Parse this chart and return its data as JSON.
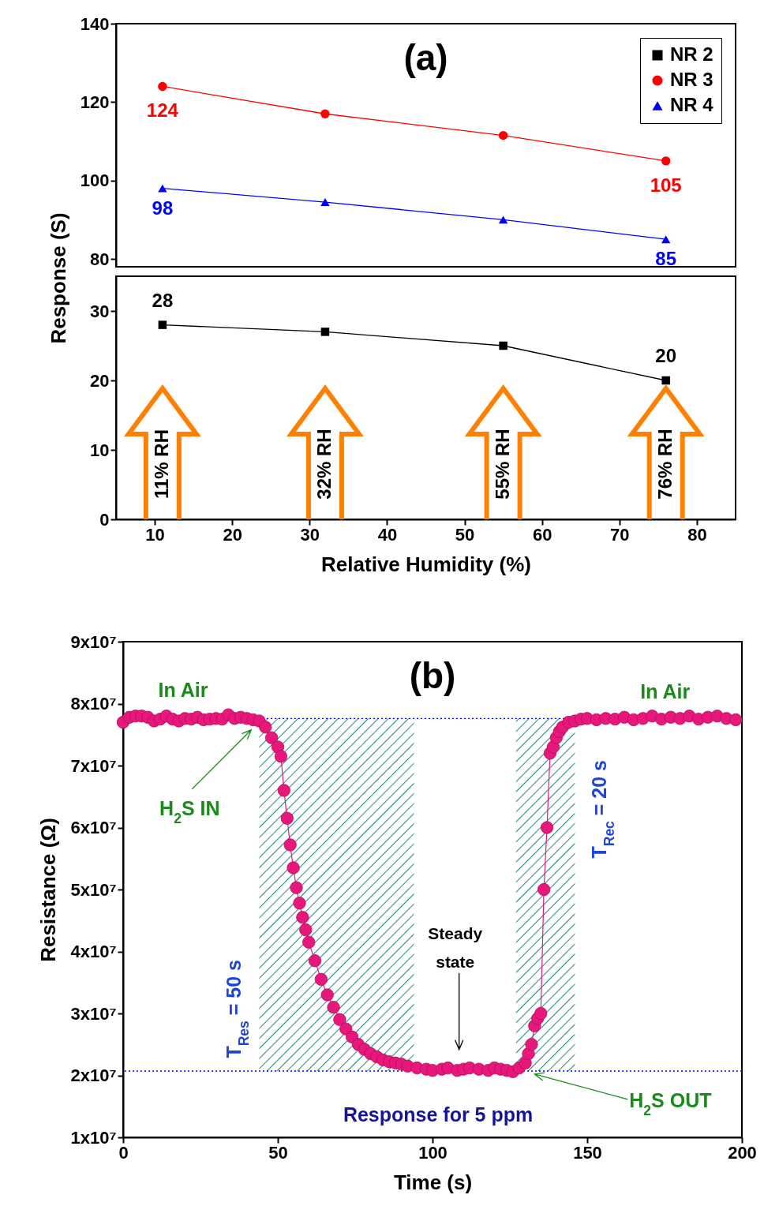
{
  "chart_data": [
    {
      "type": "line",
      "title": "(a)",
      "ylabel": "Response (S)",
      "x": [
        11,
        32,
        55,
        76
      ],
      "xlim": [
        5,
        85
      ],
      "ylim": [
        78,
        140
      ],
      "yticks": [
        80,
        100,
        120,
        140
      ],
      "tick_labels": "y",
      "legend": "top right",
      "series": [
        {
          "name": "NR 2",
          "color": "#000000",
          "marker": "square",
          "values": [
            null,
            null,
            null,
            null
          ]
        },
        {
          "name": "NR 3",
          "color": "#ff0000",
          "marker": "circle",
          "values": [
            124,
            117,
            111.5,
            105
          ],
          "value_labels": [
            "124",
            null,
            null,
            "105"
          ]
        },
        {
          "name": "NR 4",
          "color": "#0000ff",
          "marker": "triangle",
          "values": [
            98,
            94.5,
            90,
            85
          ],
          "value_labels": [
            "98",
            null,
            null,
            "85"
          ]
        }
      ]
    },
    {
      "type": "line",
      "xlabel": "Relative Humidity (%)",
      "x": [
        11,
        32,
        55,
        76
      ],
      "xlim": [
        5,
        85
      ],
      "xticks": [
        10,
        20,
        30,
        40,
        50,
        60,
        70,
        80
      ],
      "ylim": [
        0,
        35
      ],
      "yticks": [
        0,
        10,
        20,
        30
      ],
      "marker": "square",
      "series": [
        {
          "color": "#000000",
          "values": [
            28,
            27,
            25,
            20
          ],
          "value_labels": [
            "28",
            null,
            null,
            "20"
          ]
        }
      ],
      "annotations": [
        "11% RH",
        "32% RH",
        "55% RH",
        "76% RH"
      ]
    },
    {
      "type": "line",
      "title": "(b)",
      "xlabel": "Time (s)",
      "ylabel": "Resistance (Ω)",
      "xlim": [
        0,
        200
      ],
      "xticks": [
        0,
        50,
        100,
        150,
        200
      ],
      "ylim": [
        10000000.0,
        90000000.0
      ],
      "yticks": [
        {
          "value": 10000000.0,
          "label": "1x10⁷"
        },
        {
          "value": 20000000.0,
          "label": "2x10⁷"
        },
        {
          "value": 30000000.0,
          "label": "3x10⁷"
        },
        {
          "value": 40000000.0,
          "label": "4x10⁷"
        },
        {
          "value": 50000000.0,
          "label": "5x10⁷"
        },
        {
          "value": 60000000.0,
          "label": "6x10⁷"
        },
        {
          "value": 70000000.0,
          "label": "7x10⁷"
        },
        {
          "value": 80000000.0,
          "label": "8x10⁷"
        },
        {
          "value": 90000000.0,
          "label": "9x10⁷"
        }
      ],
      "marker": "circle",
      "x": [
        0,
        2,
        4,
        6,
        8,
        10,
        12,
        14,
        16,
        18,
        20,
        22,
        24,
        26,
        28,
        30,
        32,
        34,
        36,
        38,
        40,
        42,
        44,
        46,
        48,
        50,
        51,
        52,
        53,
        54,
        55,
        56,
        57,
        58,
        59,
        60,
        62,
        64,
        66,
        68,
        70,
        72,
        74,
        76,
        78,
        80,
        82,
        84,
        86,
        88,
        90,
        92,
        95,
        98,
        100,
        103,
        105,
        108,
        110,
        112,
        115,
        118,
        120,
        122,
        124,
        126,
        128,
        130,
        131,
        132,
        133,
        134,
        135,
        136,
        137,
        138,
        139,
        140,
        141,
        142,
        144,
        146,
        148,
        150,
        153,
        156,
        159,
        162,
        165,
        168,
        171,
        174,
        177,
        180,
        183,
        186,
        189,
        192,
        195,
        198
      ],
      "series": [
        {
          "color": "#e8177c",
          "values": [
            77000000.0,
            77800000.0,
            78000000.0,
            78000000.0,
            77800000.0,
            77200000.0,
            77500000.0,
            78000000.0,
            77500000.0,
            77200000.0,
            77600000.0,
            77500000.0,
            77800000.0,
            77400000.0,
            77500000.0,
            77600000.0,
            77500000.0,
            78200000.0,
            77600000.0,
            77800000.0,
            77600000.0,
            77400000.0,
            77200000.0,
            76200000.0,
            74500000.0,
            73000000.0,
            71500000.0,
            66000000.0,
            61500000.0,
            57200000.0,
            53500000.0,
            50300000.0,
            47800000.0,
            45500000.0,
            43500000.0,
            41500000.0,
            38500000.0,
            35500000.0,
            33000000.0,
            31000000.0,
            29000000.0,
            27500000.0,
            26200000.0,
            25000000.0,
            24200000.0,
            23500000.0,
            23000000.0,
            22500000.0,
            22200000.0,
            22000000.0,
            21800000.0,
            21500000.0,
            21200000.0,
            21000000.0,
            20800000.0,
            21000000.0,
            21200000.0,
            20800000.0,
            21000000.0,
            21200000.0,
            21000000.0,
            20800000.0,
            21200000.0,
            21000000.0,
            20800000.0,
            20600000.0,
            21200000.0,
            22000000.0,
            23500000.0,
            25000000.0,
            28000000.0,
            29200000.0,
            30000000.0,
            50000000.0,
            60000000.0,
            72000000.0,
            73000000.0,
            74500000.0,
            75500000.0,
            76200000.0,
            77000000.0,
            77200000.0,
            77500000.0,
            77600000.0,
            77400000.0,
            77600000.0,
            77500000.0,
            77800000.0,
            77400000.0,
            77600000.0,
            78000000.0,
            77500000.0,
            77800000.0,
            77600000.0,
            78000000.0,
            77500000.0,
            77800000.0,
            78000000.0,
            77600000.0,
            77400000.0
          ]
        }
      ],
      "ref_lines": [
        {
          "axis": "y",
          "value": 77600000.0,
          "color": "#0000ff",
          "line_style": "dotted"
        },
        {
          "axis": "y",
          "value": 20700000.0,
          "color": "#0000ff",
          "line_style": "dotted"
        }
      ],
      "bands": [
        {
          "axis": "x",
          "from": 44,
          "to": 94,
          "color": "#1e8a82"
        },
        {
          "axis": "x",
          "from": 127,
          "to": 146,
          "color": "#1e8a82"
        }
      ],
      "annotations": [
        "In Air",
        "In Air",
        "H$_{2}$S IN",
        "T$_{Res}$ = 50 s",
        "Steady state",
        "T$_{Rec}$ = 20 s",
        "Response for 5 ppm",
        {
          "text": "H$_{2}$S OUT",
          "x": 133,
          "y": 20200000.0
        }
      ]
    }
  ]
}
